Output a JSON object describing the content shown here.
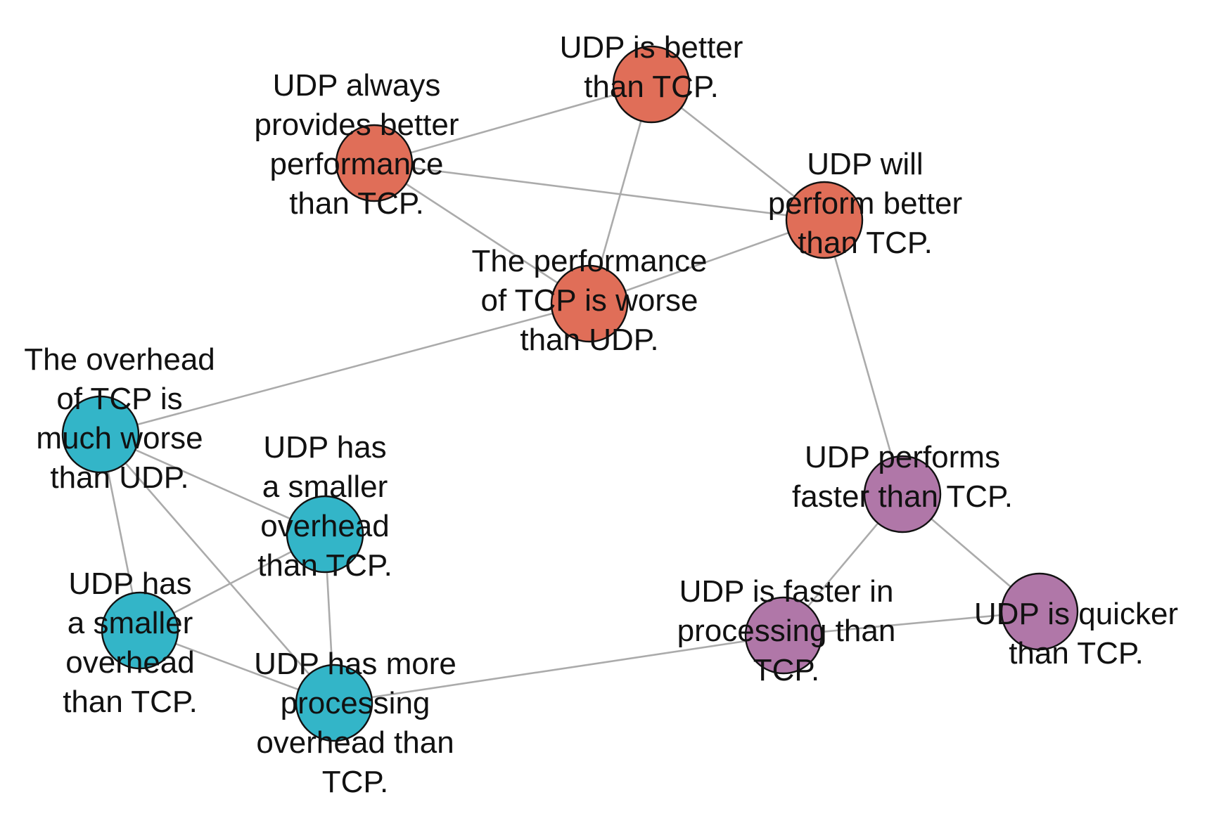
{
  "colors": {
    "cluster_performance": "#e06e58",
    "cluster_overhead": "#33b5c8",
    "cluster_speed": "#b077a8",
    "edge": "#ababab",
    "node_stroke": "#111111",
    "label": "#111111"
  },
  "nodes": [
    {
      "id": "udp-better",
      "cluster": "cluster_performance",
      "lines": [
        "UDP is better",
        "than TCP."
      ]
    },
    {
      "id": "udp-always-better",
      "cluster": "cluster_performance",
      "lines": [
        "UDP always",
        "provides better",
        "performance",
        "than TCP."
      ]
    },
    {
      "id": "udp-will-perform",
      "cluster": "cluster_performance",
      "lines": [
        "UDP will",
        "perform better",
        "than TCP."
      ]
    },
    {
      "id": "tcp-performance-worse",
      "cluster": "cluster_performance",
      "lines": [
        "The performance",
        "of TCP is worse",
        "than UDP."
      ]
    },
    {
      "id": "tcp-overhead-worse",
      "cluster": "cluster_overhead",
      "lines": [
        "The overhead",
        "of TCP is",
        "much worse",
        "than UDP."
      ]
    },
    {
      "id": "udp-smaller-overhead-1",
      "cluster": "cluster_overhead",
      "lines": [
        "UDP has",
        "a smaller",
        "overhead",
        "than TCP."
      ]
    },
    {
      "id": "udp-smaller-overhead-2",
      "cluster": "cluster_overhead",
      "lines": [
        "UDP has",
        "a smaller",
        "overhead",
        "than TCP."
      ]
    },
    {
      "id": "udp-more-processing",
      "cluster": "cluster_overhead",
      "lines": [
        "UDP has more",
        "processing",
        "overhead than",
        "TCP."
      ]
    },
    {
      "id": "udp-performs-faster",
      "cluster": "cluster_speed",
      "lines": [
        "UDP performs",
        "faster than TCP."
      ]
    },
    {
      "id": "udp-faster-processing",
      "cluster": "cluster_speed",
      "lines": [
        "UDP is faster in",
        "processing than",
        "TCP."
      ]
    },
    {
      "id": "udp-quicker",
      "cluster": "cluster_speed",
      "lines": [
        "UDP is quicker",
        "than TCP."
      ]
    }
  ],
  "edges": [
    [
      "udp-always-better",
      "udp-better"
    ],
    [
      "udp-always-better",
      "udp-will-perform"
    ],
    [
      "udp-always-better",
      "tcp-performance-worse"
    ],
    [
      "udp-better",
      "udp-will-perform"
    ],
    [
      "udp-better",
      "tcp-performance-worse"
    ],
    [
      "udp-will-perform",
      "tcp-performance-worse"
    ],
    [
      "udp-will-perform",
      "udp-performs-faster"
    ],
    [
      "tcp-performance-worse",
      "tcp-overhead-worse"
    ],
    [
      "tcp-overhead-worse",
      "udp-smaller-overhead-1"
    ],
    [
      "tcp-overhead-worse",
      "udp-smaller-overhead-2"
    ],
    [
      "tcp-overhead-worse",
      "udp-more-processing"
    ],
    [
      "udp-smaller-overhead-1",
      "udp-smaller-overhead-2"
    ],
    [
      "udp-smaller-overhead-1",
      "udp-more-processing"
    ],
    [
      "udp-smaller-overhead-2",
      "udp-more-processing"
    ],
    [
      "udp-more-processing",
      "udp-faster-processing"
    ],
    [
      "udp-performs-faster",
      "udp-faster-processing"
    ],
    [
      "udp-performs-faster",
      "udp-quicker"
    ],
    [
      "udp-faster-processing",
      "udp-quicker"
    ]
  ]
}
